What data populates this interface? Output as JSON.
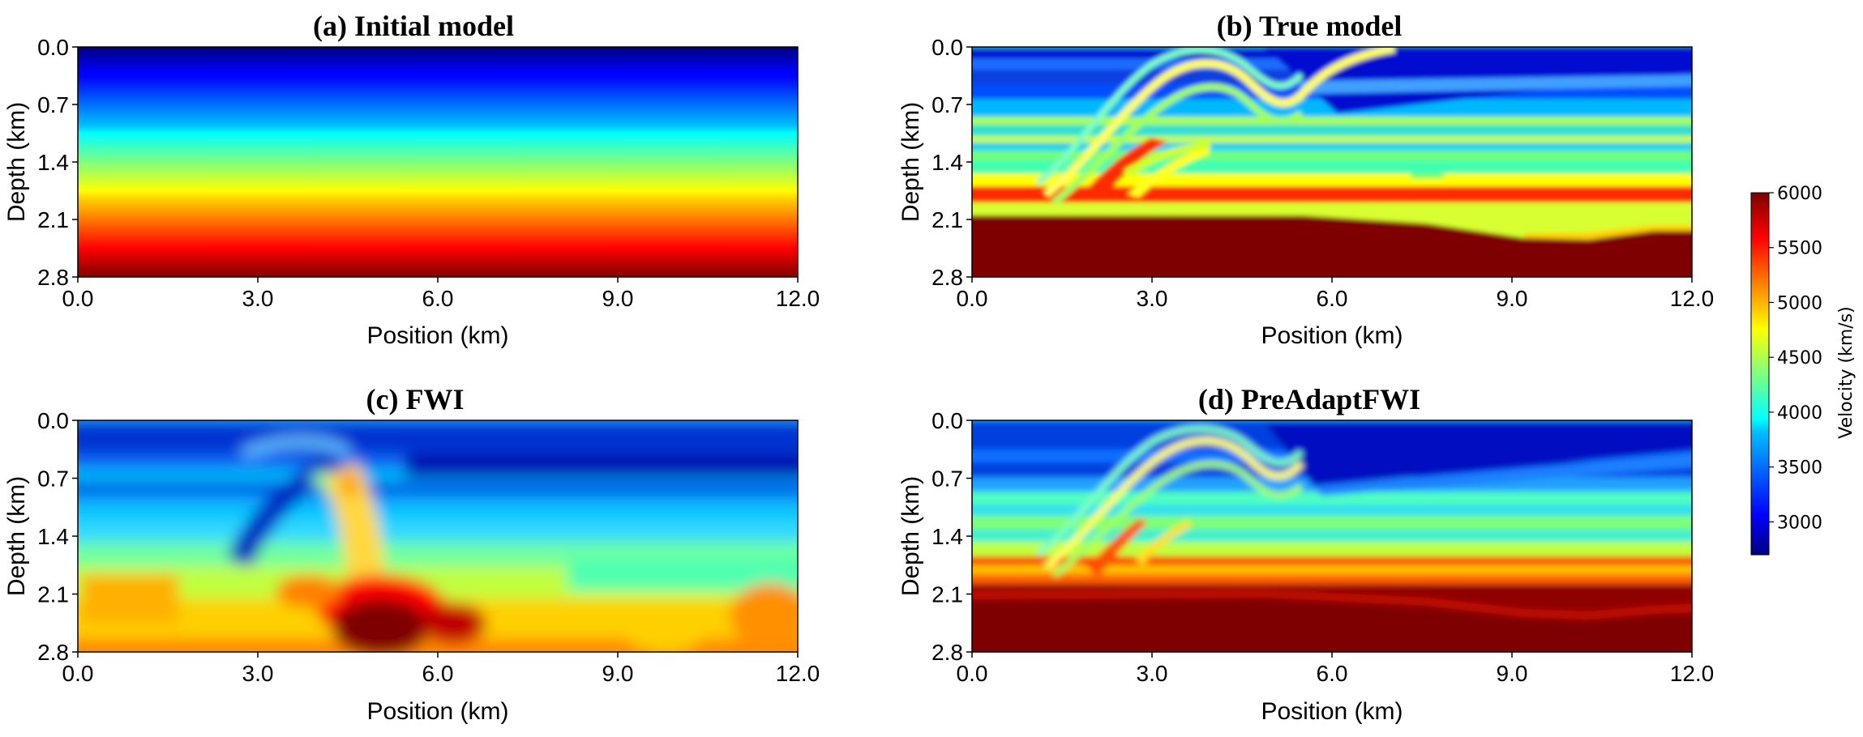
{
  "chart_data": [
    {
      "type": "heatmap",
      "id": "a",
      "title": "(a) Initial model",
      "xlabel": "Position (km)",
      "ylabel": "Depth (km)",
      "xlim": [
        0,
        12
      ],
      "ylim": [
        0,
        2.8
      ],
      "xticks": [
        "0.0",
        "3.0",
        "6.0",
        "9.0",
        "12.0"
      ],
      "yticks": [
        "0.0",
        "0.7",
        "1.4",
        "2.1",
        "2.8"
      ],
      "description": "Smooth 1D gradient velocity model increasing with depth from about 2700 km/s at 0 km to 6000 km/s at 2.8 km"
    },
    {
      "type": "heatmap",
      "id": "b",
      "title": "(b) True model",
      "xlabel": "Position (km)",
      "ylabel": "Depth (km)",
      "xlim": [
        0,
        12
      ],
      "ylim": [
        0,
        2.8
      ],
      "xticks": [
        "0.0",
        "3.0",
        "6.0",
        "9.0",
        "12.0"
      ],
      "yticks": [
        "0.0",
        "0.7",
        "1.4",
        "2.1",
        "2.8"
      ],
      "description": "Layered model with anticline near 3-6 km, thrust fault, high-velocity basement below about 2.1 km"
    },
    {
      "type": "heatmap",
      "id": "c",
      "title": "(c) FWI",
      "xlabel": "Position (km)",
      "ylabel": "Depth (km)",
      "xlim": [
        0,
        12
      ],
      "ylim": [
        0,
        2.8
      ],
      "xticks": [
        "0.0",
        "3.0",
        "6.0",
        "9.0",
        "12.0"
      ],
      "yticks": [
        "0.0",
        "0.7",
        "1.4",
        "2.1",
        "2.8"
      ],
      "description": "Conventional FWI result with smeared layers and a high-velocity artifact beneath 4-6 km"
    },
    {
      "type": "heatmap",
      "id": "d",
      "title": "(d) PreAdaptFWI",
      "xlabel": "Position (km)",
      "ylabel": "Depth (km)",
      "xlim": [
        0,
        12
      ],
      "ylim": [
        0,
        2.8
      ],
      "xticks": [
        "0.0",
        "3.0",
        "6.0",
        "9.0",
        "12.0"
      ],
      "yticks": [
        "0.0",
        "0.7",
        "1.4",
        "2.1",
        "2.8"
      ],
      "description": "PreAdaptFWI result closely recovering the layered true model"
    }
  ],
  "colorbar": {
    "label": "Velocity (km/s)",
    "vmin": 2700,
    "vmax": 6000,
    "ticks": [
      "3000",
      "3500",
      "4000",
      "4500",
      "5000",
      "5500",
      "6000"
    ],
    "tick_values": [
      3000,
      3500,
      4000,
      4500,
      5000,
      5500,
      6000
    ],
    "colormap": "jet"
  }
}
